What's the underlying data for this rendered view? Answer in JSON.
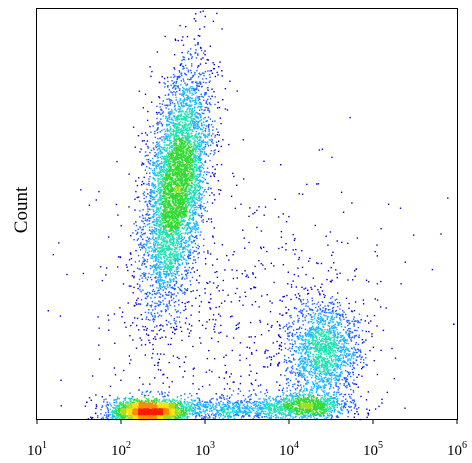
{
  "chart_data": {
    "type": "scatter",
    "subtype": "flow-cytometry-density-dot-plot",
    "title": "",
    "xlabel": "",
    "ylabel": "Count",
    "x_scale": "log",
    "xlim": [
      10,
      1000000
    ],
    "ylim": [
      0,
      100
    ],
    "grid": false,
    "legend": "none",
    "x_ticks": [
      {
        "base": "10",
        "exp": "1"
      },
      {
        "base": "10",
        "exp": "2"
      },
      {
        "base": "10",
        "exp": "3"
      },
      {
        "base": "10",
        "exp": "4"
      },
      {
        "base": "10",
        "exp": "5"
      },
      {
        "base": "10",
        "exp": "6"
      }
    ],
    "density_colors": [
      "#0000cc",
      "#1e5eff",
      "#19b4ff",
      "#22e0b4",
      "#33d933",
      "#a0e020",
      "#ffe000",
      "#ff8a00",
      "#ff1a00"
    ],
    "populations": [
      {
        "x_center": 450,
        "x_spread_decades": 0.17,
        "y_center": 57,
        "y_spread": 14,
        "tilt_decades_per_unit": 0.006,
        "points": 5200
      },
      {
        "x_center": 210,
        "x_spread_decades": 0.22,
        "y_center": 1.7,
        "y_spread": 1.6,
        "tilt_decades_per_unit": 0,
        "points": 2600
      },
      {
        "x_center": 25000,
        "x_spread_decades": 0.22,
        "y_center": 17,
        "y_spread": 6,
        "tilt_decades_per_unit": 0,
        "points": 1700
      },
      {
        "x_center": 16000,
        "x_spread_decades": 0.25,
        "y_center": 3.5,
        "y_spread": 1.5,
        "tilt_decades_per_unit": 0,
        "points": 900
      },
      {
        "x_center": 2000,
        "x_spread_decades": 0.55,
        "y_center": 2.5,
        "y_spread": 1.5,
        "tilt_decades_per_unit": 0,
        "points": 900
      },
      {
        "x_center": 3000,
        "x_spread_decades": 0.9,
        "y_center": 25,
        "y_spread": 18,
        "tilt_decades_per_unit": 0,
        "points": 700
      }
    ]
  }
}
